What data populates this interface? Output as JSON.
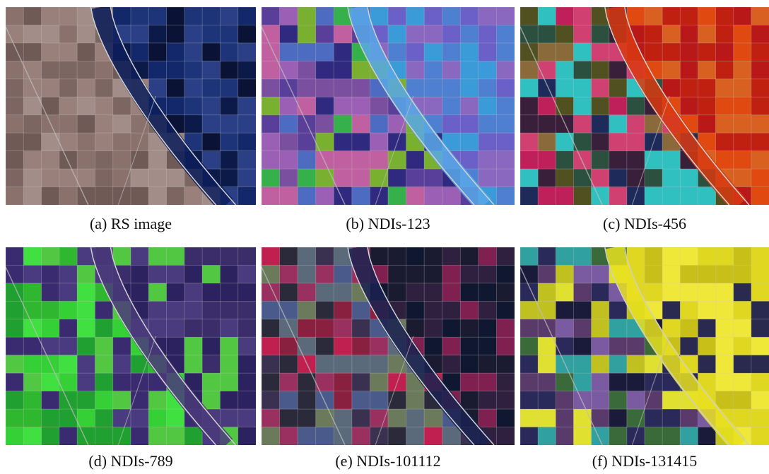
{
  "panels": [
    {
      "caption": "(a) RS image"
    },
    {
      "caption": "(b) NDIs-123"
    },
    {
      "caption": "(c) NDIs-456"
    },
    {
      "caption": "(d) NDIs-789"
    },
    {
      "caption": "(e) NDIs-101112"
    },
    {
      "caption": "(f) NDIs-131415"
    }
  ]
}
